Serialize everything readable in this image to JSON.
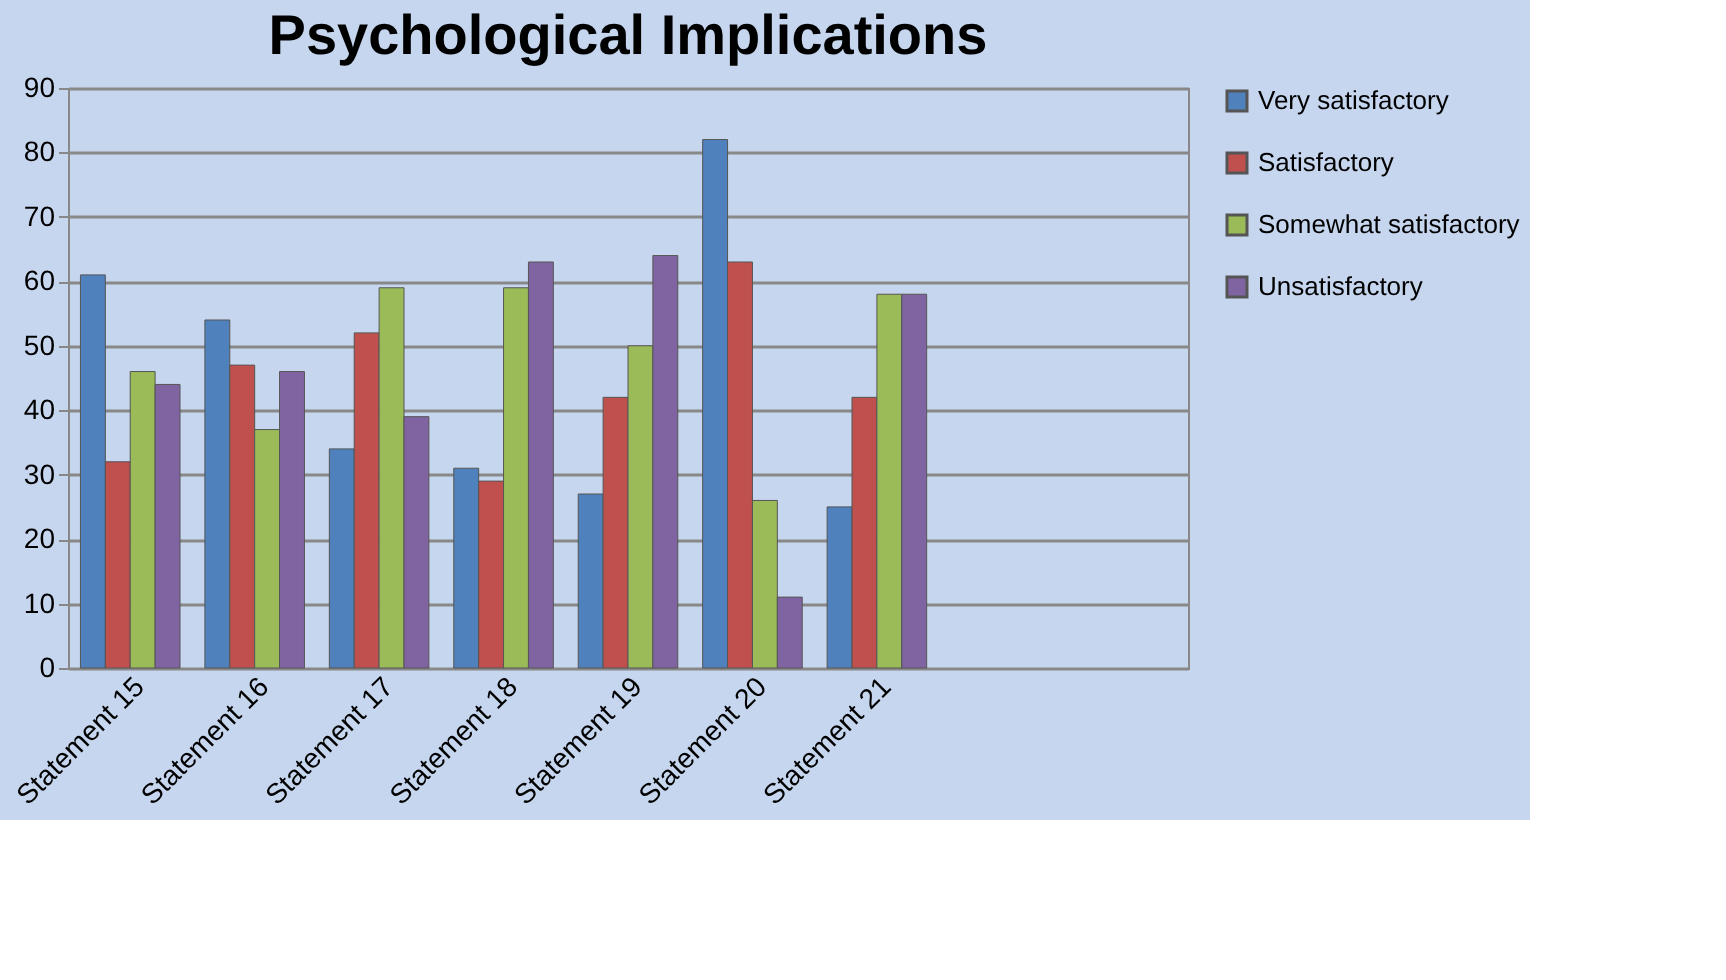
{
  "chart_data": {
    "type": "bar",
    "title": "Psychological Implications",
    "categories": [
      "Statement 15",
      "Statement 16",
      "Statement 17",
      "Statement 18",
      "Statement 19",
      "Statement 20",
      "Statement 21",
      null,
      null
    ],
    "series": [
      {
        "name": "Very satisfactory",
        "color": "#4f81bd",
        "values": [
          61,
          54,
          34,
          31,
          27,
          82,
          25,
          null,
          null
        ]
      },
      {
        "name": "Satisfactory",
        "color": "#c0504d",
        "values": [
          32,
          47,
          52,
          29,
          42,
          63,
          42,
          null,
          null
        ]
      },
      {
        "name": "Somewhat satisfactory",
        "color": "#9bbb59",
        "values": [
          46,
          37,
          59,
          59,
          50,
          26,
          58,
          null,
          null
        ]
      },
      {
        "name": "Unsatisfactory",
        "color": "#8064a2",
        "values": [
          44,
          46,
          39,
          63,
          64,
          11,
          58,
          null,
          null
        ]
      }
    ],
    "ylim": [
      0,
      90
    ],
    "yticks": [
      0,
      10,
      20,
      30,
      40,
      50,
      60,
      70,
      80,
      90
    ],
    "grid": "y",
    "legend": "right"
  }
}
